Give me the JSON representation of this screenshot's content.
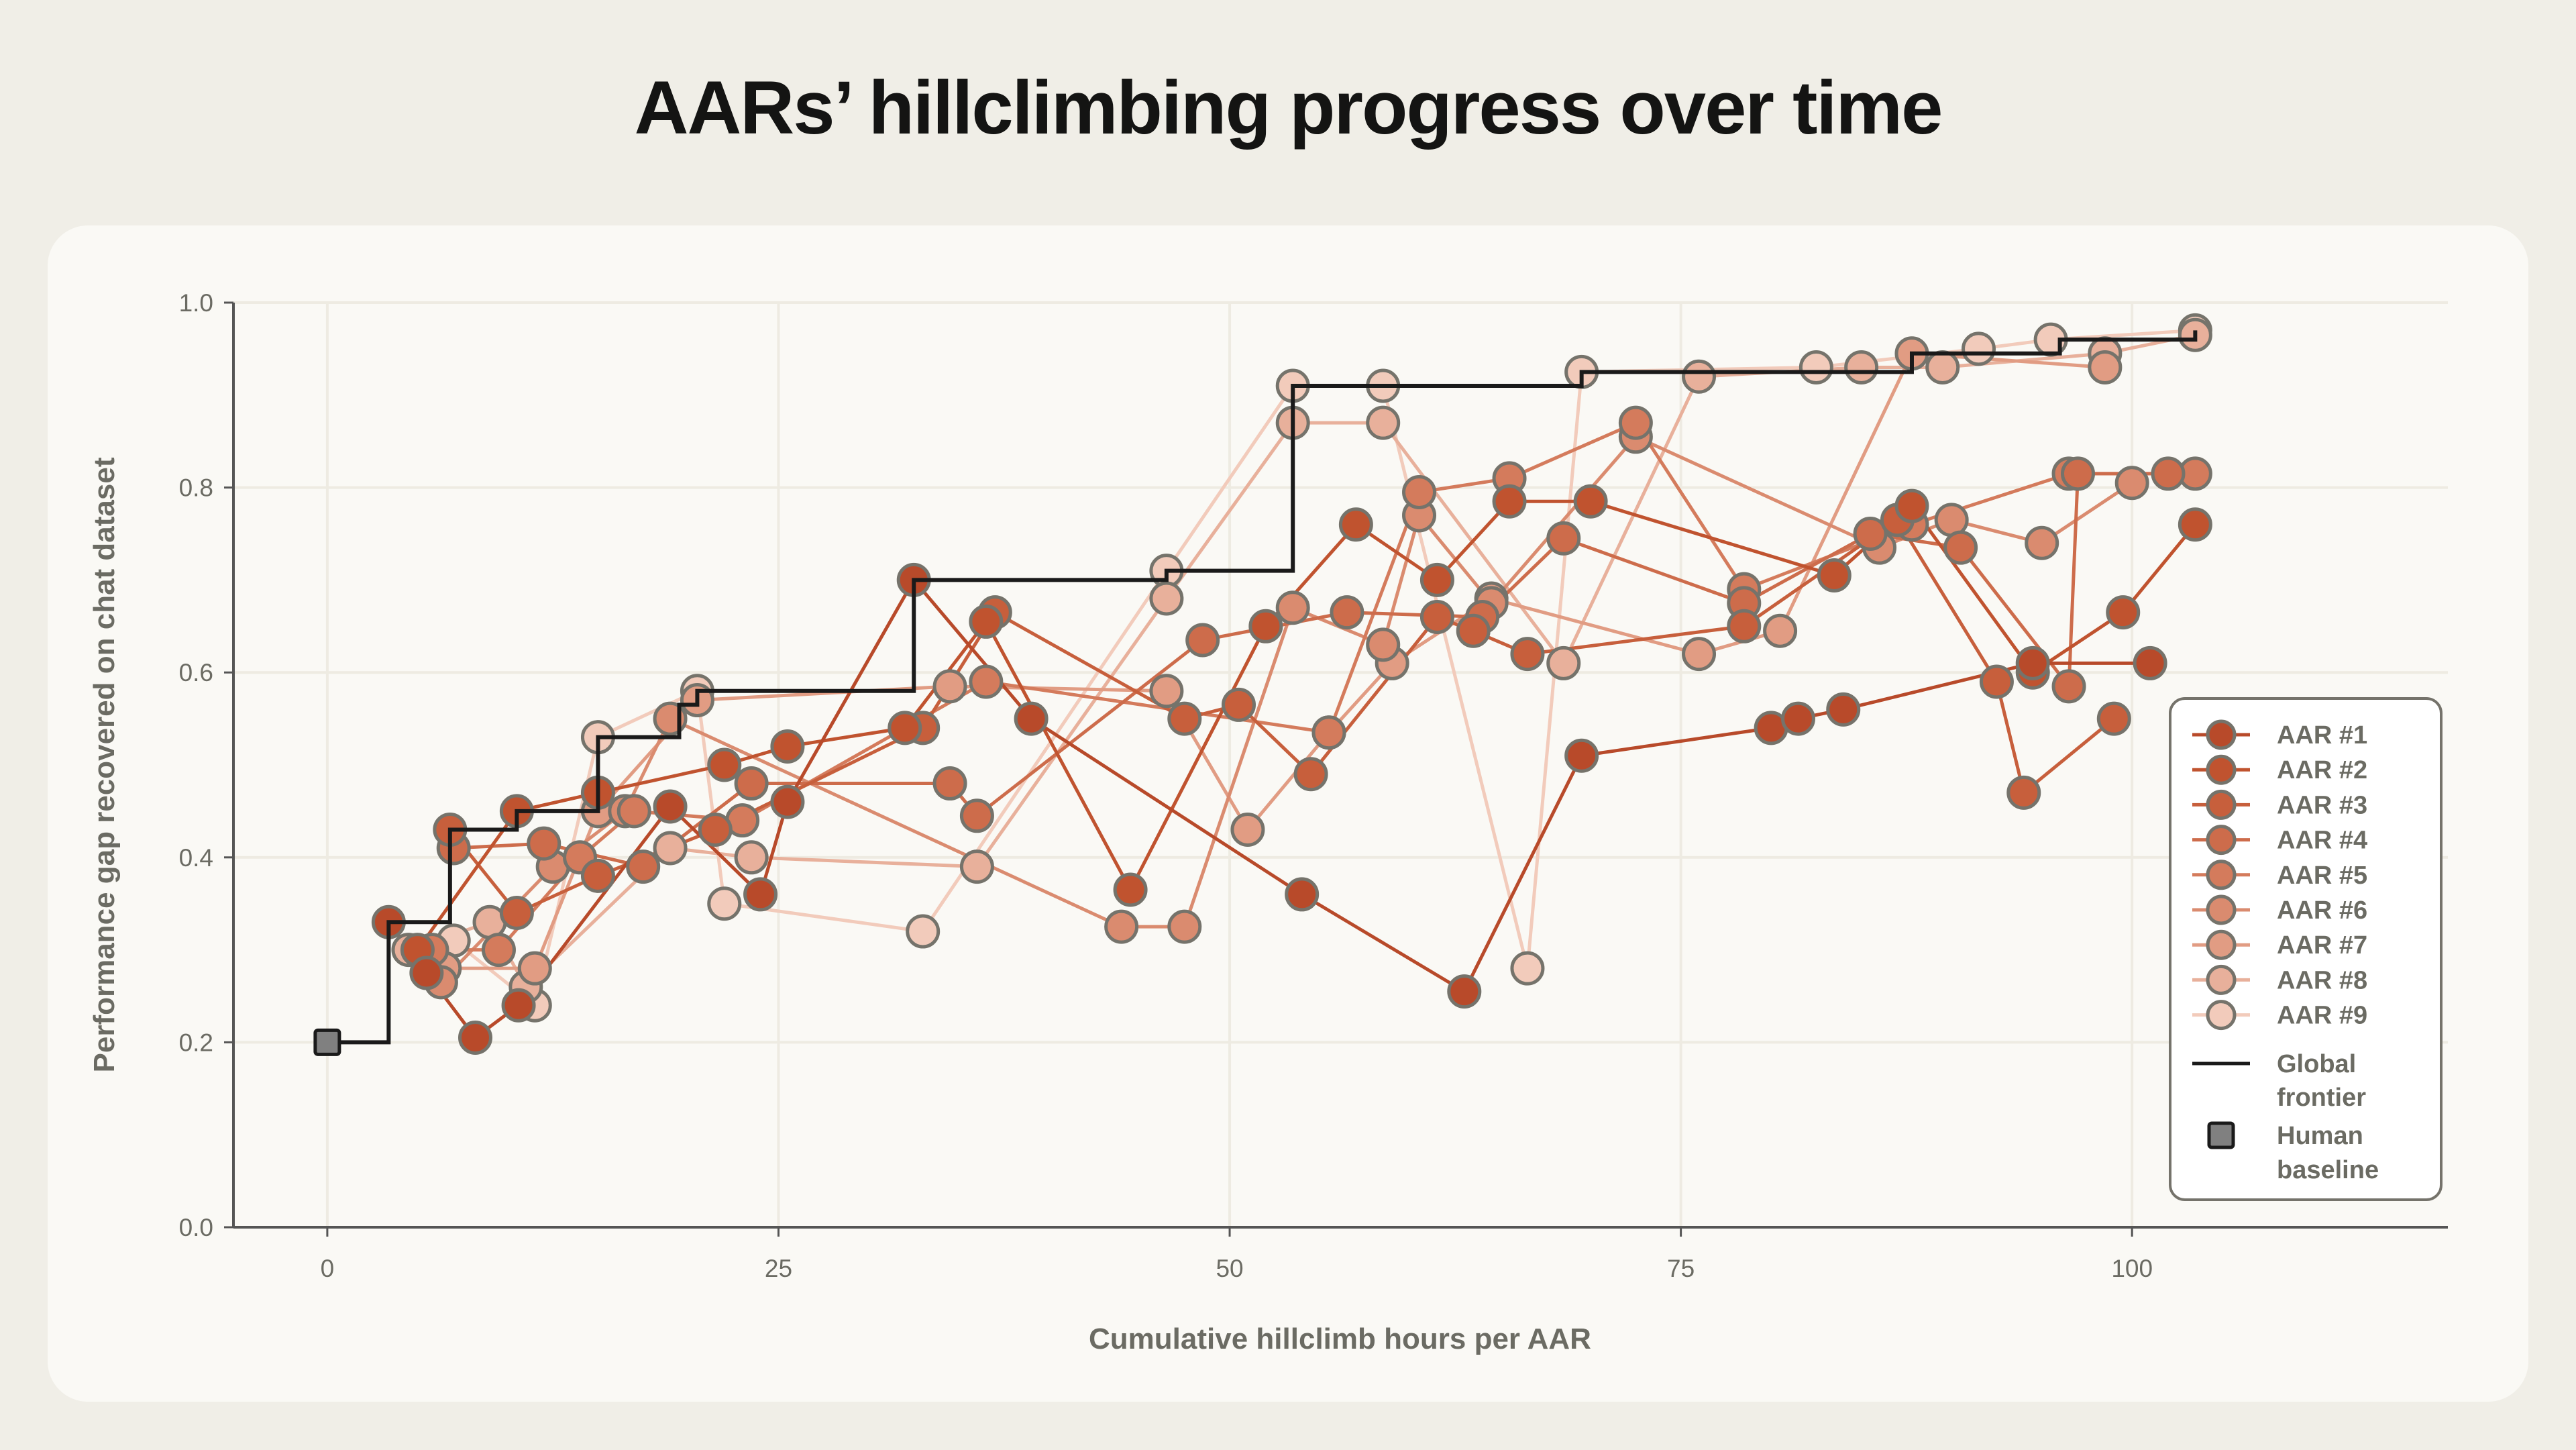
{
  "chart_data": {
    "type": "line",
    "title": "AARs’ hillclimbing progress over time",
    "xlabel": "Cumulative hillclimb hours per AAR",
    "ylabel": "Performance gap recovered on chat dataset",
    "xlim": [
      -5.2,
      117.5
    ],
    "ylim": [
      0,
      1.0
    ],
    "x_ticks": [
      "0",
      "25",
      "50",
      "75",
      "100"
    ],
    "x_tick_values": [
      0,
      25,
      50,
      75,
      100
    ],
    "y_ticks": [
      "0.0",
      "0.2",
      "0.4",
      "0.6",
      "0.8",
      "1.0"
    ],
    "y_tick_values": [
      0,
      0.2,
      0.4,
      0.6,
      0.8,
      1.0
    ],
    "grid": true,
    "legend_position": "right",
    "series": [
      {
        "name": "AAR #1",
        "color": "#b84a2a",
        "points": [
          [
            3.4,
            0.33
          ],
          [
            5.5,
            0.275
          ],
          [
            8.2,
            0.205
          ],
          [
            10.6,
            0.24
          ],
          [
            19,
            0.455
          ],
          [
            24,
            0.36
          ],
          [
            25.5,
            0.46
          ],
          [
            32.5,
            0.7
          ],
          [
            39,
            0.55
          ],
          [
            54,
            0.36
          ],
          [
            63,
            0.255
          ],
          [
            69.5,
            0.51
          ],
          [
            80,
            0.54
          ],
          [
            81.5,
            0.55
          ],
          [
            84,
            0.56
          ],
          [
            94.5,
            0.61
          ],
          [
            101,
            0.61
          ]
        ]
      },
      {
        "name": "AAR #2",
        "color": "#c0532f",
        "points": [
          [
            5,
            0.3
          ],
          [
            10.5,
            0.45
          ],
          [
            15,
            0.47
          ],
          [
            22,
            0.5
          ],
          [
            25.5,
            0.52
          ],
          [
            32,
            0.54
          ],
          [
            36.5,
            0.655
          ],
          [
            44.5,
            0.365
          ],
          [
            52,
            0.65
          ],
          [
            57,
            0.76
          ],
          [
            61.5,
            0.7
          ],
          [
            65.5,
            0.785
          ],
          [
            70,
            0.785
          ],
          [
            83.5,
            0.705
          ],
          [
            87.8,
            0.78
          ],
          [
            94.5,
            0.6
          ],
          [
            99.5,
            0.665
          ],
          [
            103.5,
            0.76
          ]
        ]
      },
      {
        "name": "AAR #3",
        "color": "#c75f3c",
        "points": [
          [
            6.8,
            0.43
          ],
          [
            10.5,
            0.34
          ],
          [
            15,
            0.38
          ],
          [
            21.5,
            0.43
          ],
          [
            33,
            0.54
          ],
          [
            37,
            0.665
          ],
          [
            47.5,
            0.55
          ],
          [
            50.5,
            0.565
          ],
          [
            54.5,
            0.49
          ],
          [
            61.5,
            0.66
          ],
          [
            63.5,
            0.645
          ],
          [
            66.5,
            0.62
          ],
          [
            78.5,
            0.65
          ],
          [
            87,
            0.765
          ],
          [
            92.5,
            0.59
          ],
          [
            94,
            0.47
          ],
          [
            99,
            0.55
          ]
        ]
      },
      {
        "name": "AAR #4",
        "color": "#cd6c4b",
        "points": [
          [
            7,
            0.41
          ],
          [
            12,
            0.415
          ],
          [
            17.5,
            0.39
          ],
          [
            23.5,
            0.48
          ],
          [
            34.5,
            0.48
          ],
          [
            36,
            0.445
          ],
          [
            48.5,
            0.635
          ],
          [
            56.5,
            0.665
          ],
          [
            64,
            0.66
          ],
          [
            68.5,
            0.745
          ],
          [
            78.5,
            0.675
          ],
          [
            85.5,
            0.75
          ],
          [
            90.5,
            0.735
          ],
          [
            96.5,
            0.585
          ],
          [
            97,
            0.815
          ],
          [
            102,
            0.815
          ]
        ]
      },
      {
        "name": "AAR #5",
        "color": "#d47b5c",
        "points": [
          [
            5.8,
            0.3
          ],
          [
            9.5,
            0.3
          ],
          [
            14,
            0.4
          ],
          [
            17,
            0.45
          ],
          [
            23,
            0.44
          ],
          [
            36.5,
            0.59
          ],
          [
            55.5,
            0.535
          ],
          [
            60.5,
            0.795
          ],
          [
            65.5,
            0.81
          ],
          [
            72.5,
            0.87
          ],
          [
            78.5,
            0.69
          ],
          [
            87.8,
            0.76
          ],
          [
            96.5,
            0.815
          ],
          [
            103.5,
            0.815
          ]
        ]
      },
      {
        "name": "AAR #6",
        "color": "#da8b6f",
        "points": [
          [
            6.3,
            0.265
          ],
          [
            12.5,
            0.39
          ],
          [
            16.5,
            0.45
          ],
          [
            19,
            0.55
          ],
          [
            44,
            0.325
          ],
          [
            47.5,
            0.325
          ],
          [
            53.5,
            0.67
          ],
          [
            58.5,
            0.63
          ],
          [
            60.5,
            0.77
          ],
          [
            64.5,
            0.675
          ],
          [
            72.5,
            0.855
          ],
          [
            86,
            0.735
          ],
          [
            90,
            0.765
          ],
          [
            95,
            0.74
          ],
          [
            100,
            0.805
          ]
        ]
      },
      {
        "name": "AAR #7",
        "color": "#e19c83",
        "points": [
          [
            6.5,
            0.28
          ],
          [
            11.5,
            0.28
          ],
          [
            15,
            0.45
          ],
          [
            20.5,
            0.57
          ],
          [
            34.5,
            0.585
          ],
          [
            46.5,
            0.58
          ],
          [
            51,
            0.43
          ],
          [
            55.5,
            0.535
          ],
          [
            59,
            0.61
          ],
          [
            64.5,
            0.68
          ],
          [
            76,
            0.62
          ],
          [
            80.5,
            0.645
          ],
          [
            87.8,
            0.945
          ],
          [
            98.5,
            0.93
          ]
        ]
      },
      {
        "name": "AAR #8",
        "color": "#e8b09b",
        "points": [
          [
            4.5,
            0.3
          ],
          [
            9,
            0.33
          ],
          [
            11,
            0.26
          ],
          [
            19,
            0.41
          ],
          [
            23.5,
            0.4
          ],
          [
            36,
            0.39
          ],
          [
            46.5,
            0.68
          ],
          [
            53.5,
            0.87
          ],
          [
            58.5,
            0.87
          ],
          [
            68.5,
            0.61
          ],
          [
            76,
            0.92
          ],
          [
            85,
            0.93
          ],
          [
            89.5,
            0.93
          ],
          [
            98.5,
            0.945
          ],
          [
            103.5,
            0.965
          ]
        ]
      },
      {
        "name": "AAR #9",
        "color": "#f2cbbb",
        "points": [
          [
            7,
            0.31
          ],
          [
            11.5,
            0.24
          ],
          [
            15,
            0.53
          ],
          [
            20.5,
            0.58
          ],
          [
            22,
            0.35
          ],
          [
            33,
            0.32
          ],
          [
            46.5,
            0.71
          ],
          [
            53.5,
            0.91
          ],
          [
            58.5,
            0.91
          ],
          [
            66.5,
            0.28
          ],
          [
            69.5,
            0.925
          ],
          [
            82.5,
            0.93
          ],
          [
            91.5,
            0.95
          ],
          [
            95.5,
            0.96
          ],
          [
            103.5,
            0.97
          ]
        ]
      }
    ],
    "frontier": {
      "name": "Global frontier",
      "color": "#1a1a1a",
      "points": [
        [
          0,
          0.2
        ],
        [
          3.4,
          0.33
        ],
        [
          6.8,
          0.43
        ],
        [
          10.5,
          0.45
        ],
        [
          15,
          0.53
        ],
        [
          19.5,
          0.565
        ],
        [
          20.5,
          0.58
        ],
        [
          32.5,
          0.7
        ],
        [
          46.5,
          0.71
        ],
        [
          53.5,
          0.91
        ],
        [
          69.5,
          0.925
        ],
        [
          87.8,
          0.945
        ],
        [
          96,
          0.96
        ],
        [
          103.5,
          0.97
        ]
      ]
    },
    "human_baseline": {
      "name": "Human baseline",
      "color": "#808080",
      "x": 0,
      "y": 0.2
    },
    "legend": [
      "AAR #1",
      "AAR #2",
      "AAR #3",
      "AAR #4",
      "AAR #5",
      "AAR #6",
      "AAR #7",
      "AAR #8",
      "AAR #9",
      "Global frontier",
      "Human baseline"
    ]
  }
}
